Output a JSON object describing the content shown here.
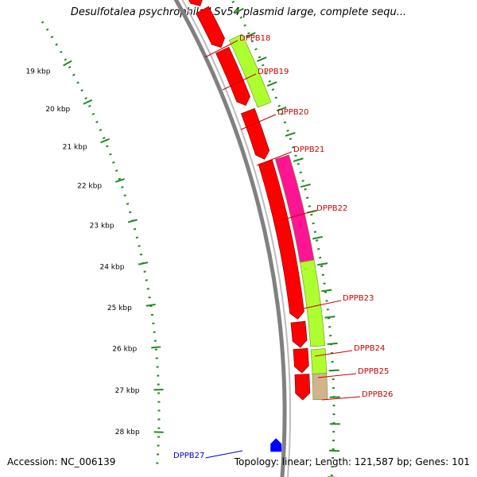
{
  "title": "Desulfotalea psychrophila LSv54 plasmid large, complete sequ...",
  "footer": {
    "accession": "Accession: NC_006139",
    "summary": "Topology: linear; Length: 121,587 bp; Genes: 101"
  },
  "colors": {
    "backbone": "#808080",
    "reverse_strand": "#ff0000",
    "forward_strand": "#adff2f",
    "highlight_gene": "#ff1493",
    "small_gene": "#d2b48c",
    "tick_color": "#228b22",
    "label_color": "#cc0000",
    "blue_label_color": "#0000cc",
    "blue_gene": "#0000ff"
  },
  "scale_labels": [
    "19 kbp",
    "20 kbp",
    "21 kbp",
    "22 kbp",
    "23 kbp",
    "24 kbp",
    "25 kbp",
    "26 kbp",
    "27 kbp",
    "28 kbp"
  ],
  "gene_labels": [
    {
      "name": "DPPB18",
      "color": "red"
    },
    {
      "name": "DPPB19",
      "color": "red"
    },
    {
      "name": "DPPB20",
      "color": "red"
    },
    {
      "name": "DPPB21",
      "color": "red"
    },
    {
      "name": "DPPB22",
      "color": "red"
    },
    {
      "name": "DPPB23",
      "color": "red"
    },
    {
      "name": "DPPB24",
      "color": "red"
    },
    {
      "name": "DPPB25",
      "color": "red"
    },
    {
      "name": "DPPB26",
      "color": "red"
    },
    {
      "name": "DPPB27",
      "color": "blue"
    }
  ]
}
